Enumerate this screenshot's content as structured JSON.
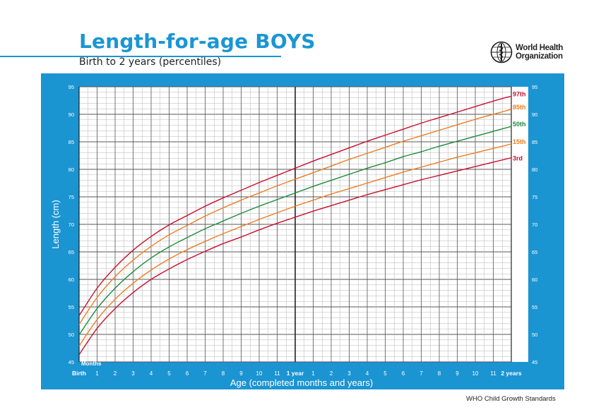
{
  "header": {
    "title": "Length-for-age BOYS",
    "subtitle": "Birth to 2 years (percentiles)",
    "org_line1": "World Health",
    "org_line2": "Organization",
    "footer": "WHO Child Growth Standards"
  },
  "colors": {
    "brand_blue": "#1b94d2",
    "title_blue": "#1a96d4",
    "p3": "#c8102e",
    "p15": "#ee7d22",
    "p50": "#1e8a3c",
    "p85": "#ee7d22",
    "p97": "#c8102e"
  },
  "chart_data": {
    "type": "line",
    "title": "Length-for-age BOYS",
    "subtitle": "Birth to 2 years (percentiles)",
    "xlabel": "Age (completed months and years)",
    "ylabel": "Length (cm)",
    "x_unit_label": "Months",
    "xlim": [
      0,
      24
    ],
    "ylim": [
      45,
      95
    ],
    "x_tick_labels": [
      {
        "month": 0,
        "label": "Birth"
      },
      {
        "month": 1,
        "label": "1"
      },
      {
        "month": 2,
        "label": "2"
      },
      {
        "month": 3,
        "label": "3"
      },
      {
        "month": 4,
        "label": "4"
      },
      {
        "month": 5,
        "label": "5"
      },
      {
        "month": 6,
        "label": "6"
      },
      {
        "month": 7,
        "label": "7"
      },
      {
        "month": 8,
        "label": "8"
      },
      {
        "month": 9,
        "label": "9"
      },
      {
        "month": 10,
        "label": "10"
      },
      {
        "month": 11,
        "label": "11"
      },
      {
        "month": 12,
        "label": "1 year"
      },
      {
        "month": 13,
        "label": "1"
      },
      {
        "month": 14,
        "label": "2"
      },
      {
        "month": 15,
        "label": "3"
      },
      {
        "month": 16,
        "label": "4"
      },
      {
        "month": 17,
        "label": "5"
      },
      {
        "month": 18,
        "label": "6"
      },
      {
        "month": 19,
        "label": "7"
      },
      {
        "month": 20,
        "label": "8"
      },
      {
        "month": 21,
        "label": "9"
      },
      {
        "month": 22,
        "label": "10"
      },
      {
        "month": 23,
        "label": "11"
      },
      {
        "month": 24,
        "label": "2 years"
      }
    ],
    "y_ticks": [
      45,
      50,
      55,
      60,
      65,
      70,
      75,
      80,
      85,
      90,
      95
    ],
    "grid": true,
    "x": [
      0,
      1,
      2,
      3,
      4,
      5,
      6,
      7,
      8,
      9,
      10,
      11,
      12,
      13,
      14,
      15,
      16,
      17,
      18,
      19,
      20,
      21,
      22,
      23,
      24
    ],
    "series": [
      {
        "name": "3rd",
        "color": "#c8102e",
        "values": [
          46.3,
          51.1,
          54.7,
          57.6,
          60.0,
          61.9,
          63.6,
          65.1,
          66.5,
          67.7,
          69.0,
          70.2,
          71.3,
          72.4,
          73.4,
          74.4,
          75.4,
          76.3,
          77.2,
          78.1,
          78.9,
          79.7,
          80.5,
          81.3,
          82.1
        ]
      },
      {
        "name": "15th",
        "color": "#ee7d22",
        "values": [
          47.9,
          52.7,
          56.4,
          59.3,
          61.7,
          63.7,
          65.4,
          66.9,
          68.3,
          69.6,
          70.9,
          72.1,
          73.3,
          74.4,
          75.5,
          76.5,
          77.5,
          78.5,
          79.5,
          80.4,
          81.3,
          82.2,
          83.0,
          83.8,
          84.6
        ]
      },
      {
        "name": "50th",
        "color": "#1e8a3c",
        "values": [
          49.9,
          54.7,
          58.4,
          61.4,
          63.9,
          65.9,
          67.6,
          69.2,
          70.6,
          72.0,
          73.3,
          74.5,
          75.7,
          76.9,
          78.0,
          79.1,
          80.2,
          81.2,
          82.3,
          83.2,
          84.2,
          85.1,
          86.0,
          86.9,
          87.8
        ]
      },
      {
        "name": "85th",
        "color": "#ee7d22",
        "values": [
          51.8,
          56.7,
          60.5,
          63.5,
          66.0,
          68.1,
          69.8,
          71.5,
          73.0,
          74.4,
          75.7,
          77.0,
          78.2,
          79.4,
          80.6,
          81.8,
          82.9,
          84.0,
          85.1,
          86.1,
          87.1,
          88.1,
          89.1,
          90.0,
          90.9
        ]
      },
      {
        "name": "97th",
        "color": "#c8102e",
        "values": [
          53.4,
          58.4,
          62.2,
          65.3,
          67.8,
          69.9,
          71.6,
          73.3,
          74.8,
          76.2,
          77.6,
          78.9,
          80.2,
          81.5,
          82.7,
          83.9,
          85.1,
          86.2,
          87.3,
          88.4,
          89.4,
          90.4,
          91.4,
          92.4,
          93.3
        ]
      }
    ]
  }
}
